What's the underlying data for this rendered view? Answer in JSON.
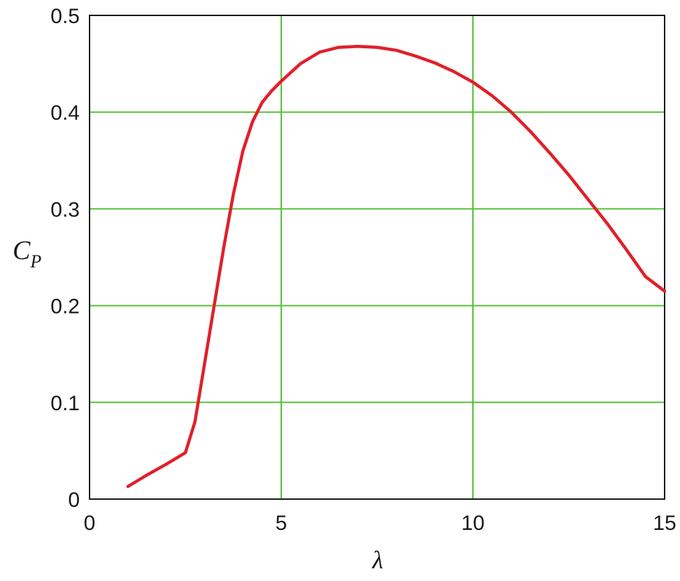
{
  "chart_data": {
    "type": "line",
    "title": "",
    "xlabel": "λ",
    "ylabel": "C",
    "ylabel_subscript": "P",
    "xlim": [
      0,
      15
    ],
    "ylim": [
      0,
      0.5
    ],
    "x_ticks": [
      0,
      5,
      10,
      15
    ],
    "y_ticks": [
      0,
      0.1,
      0.2,
      0.3,
      0.4,
      0.5
    ],
    "x_tick_labels": [
      "0",
      "5",
      "10",
      "15"
    ],
    "y_tick_labels": [
      "0",
      "0.1",
      "0.2",
      "0.3",
      "0.4",
      "0.5"
    ],
    "grid": true,
    "grid_color": "#55c234",
    "series": [
      {
        "color": "#e0202a",
        "x": [
          1.0,
          1.5,
          2.0,
          2.5,
          2.75,
          3.0,
          3.25,
          3.5,
          3.75,
          4.0,
          4.25,
          4.5,
          4.75,
          5.0,
          5.5,
          6.0,
          6.5,
          7.0,
          7.5,
          8.0,
          8.5,
          9.0,
          9.5,
          10.0,
          10.5,
          11.0,
          11.5,
          12.0,
          12.5,
          13.0,
          13.5,
          14.0,
          14.5,
          15.0
        ],
        "y": [
          0.013,
          0.025,
          0.036,
          0.048,
          0.08,
          0.14,
          0.2,
          0.26,
          0.315,
          0.36,
          0.39,
          0.41,
          0.422,
          0.432,
          0.45,
          0.462,
          0.467,
          0.468,
          0.467,
          0.464,
          0.458,
          0.451,
          0.442,
          0.431,
          0.417,
          0.4,
          0.38,
          0.358,
          0.335,
          0.31,
          0.285,
          0.258,
          0.23,
          0.215
        ]
      }
    ]
  }
}
